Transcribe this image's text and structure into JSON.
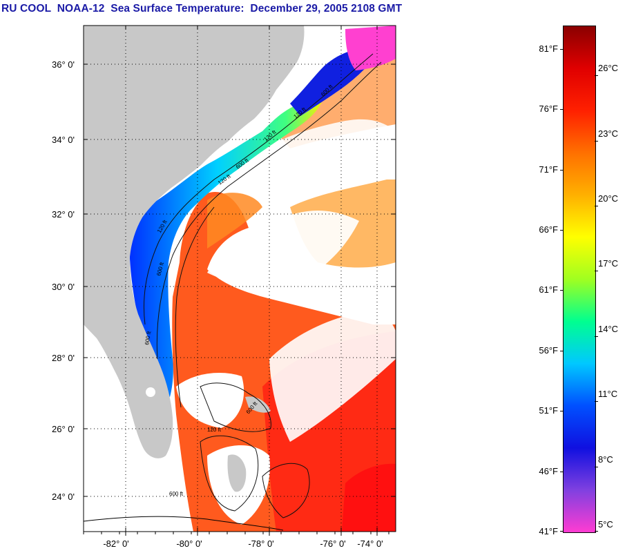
{
  "title": "RU COOL  NOAA-12  Sea Surface Temperature:  December 29, 2005 2108 GMT",
  "map": {
    "lat_labels": [
      "36° 0'",
      "34° 0'",
      "32° 0'",
      "30° 0'",
      "28° 0'",
      "26° 0'",
      "24° 0'"
    ],
    "lon_labels": [
      "-82° 0'",
      "-80° 0'",
      "-78° 0'",
      "-76° 0'",
      "-74° 0'"
    ],
    "isobath_labels": [
      "600 ft",
      "120 ft",
      "120 ft",
      "600 ft",
      "120 ft",
      "600 ft",
      "600 ft",
      "120 ft",
      "600 ft",
      "600 ft",
      "120 ft"
    ],
    "colors": {
      "land": "#c8c8c8",
      "cloud": "#ffffff",
      "grid": "#000000"
    }
  },
  "colorbar": {
    "fahrenheit_labels": [
      "81°F",
      "76°F",
      "71°F",
      "66°F",
      "61°F",
      "56°F",
      "51°F",
      "46°F",
      "41°F"
    ],
    "celsius_labels": [
      "26°C",
      "23°C",
      "20°C",
      "17°C",
      "14°C",
      "11°C",
      "8°C",
      "5°C"
    ],
    "range_c": [
      5,
      28.3
    ],
    "stops": [
      "#ff3cd2",
      "#8040e0",
      "#1010e0",
      "#0050ff",
      "#00c8ff",
      "#00ff90",
      "#a0ff20",
      "#ffff00",
      "#ffb000",
      "#ff7000",
      "#ff2000",
      "#e00000",
      "#8a0000"
    ]
  }
}
